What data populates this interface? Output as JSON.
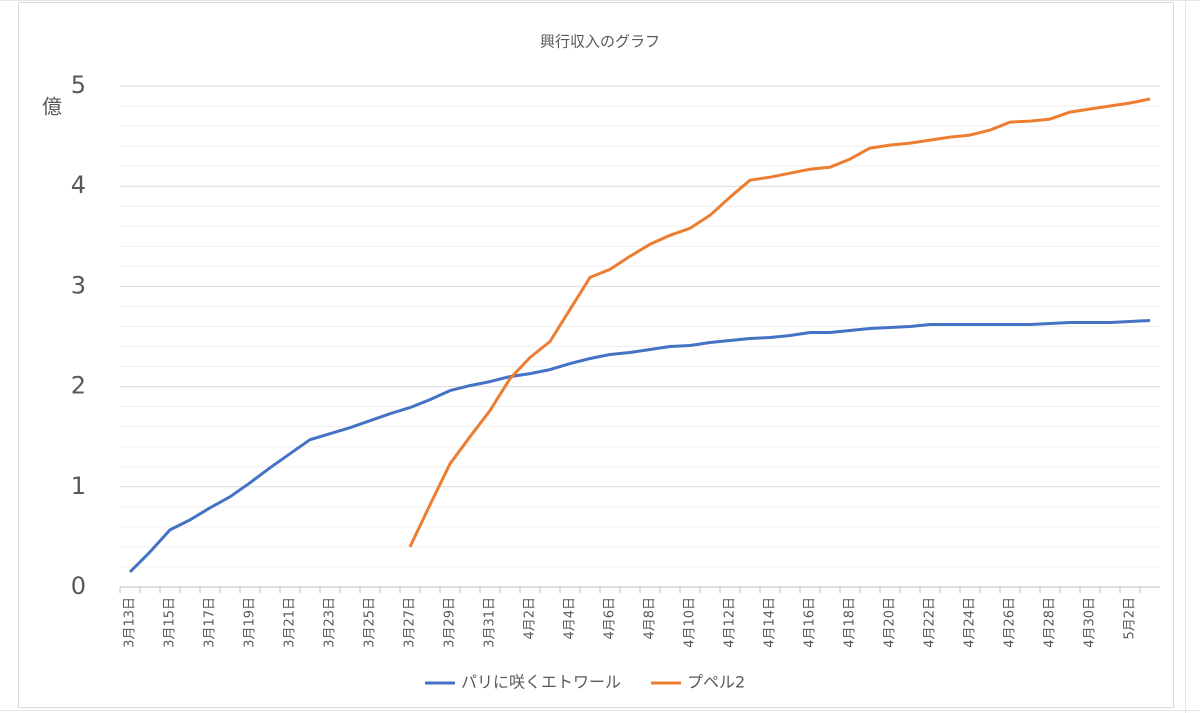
{
  "chart_data": {
    "type": "line",
    "title": "興行収入のグラフ",
    "y_label": "億",
    "categories": [
      "3月13日",
      null,
      "3月15日",
      null,
      "3月17日",
      null,
      "3月19日",
      null,
      "3月21日",
      null,
      "3月23日",
      null,
      "3月25日",
      null,
      "3月27日",
      null,
      "3月29日",
      null,
      "3月31日",
      null,
      "4月2日",
      null,
      "4月4日",
      null,
      "4月6日",
      null,
      "4月8日",
      null,
      "4月10日",
      null,
      "4月12日",
      null,
      "4月14日",
      null,
      "4月16日",
      null,
      "4月18日",
      null,
      "4月20日",
      null,
      "4月22日",
      null,
      "4月24日",
      null,
      "4月26日",
      null,
      "4月28日",
      null,
      "4月30日",
      null,
      "5月2日",
      null
    ],
    "series": [
      {
        "name": "パリに咲くエトワール",
        "color": "#4472c4",
        "values": [
          0.15,
          0.35,
          0.57,
          0.67,
          0.79,
          0.9,
          1.04,
          1.19,
          1.33,
          1.47,
          1.53,
          1.59,
          1.66,
          1.73,
          1.79,
          1.87,
          1.96,
          2.01,
          2.05,
          2.1,
          2.13,
          2.17,
          2.23,
          2.28,
          2.32,
          2.34,
          2.37,
          2.4,
          2.41,
          2.44,
          2.46,
          2.48,
          2.49,
          2.51,
          2.54,
          2.54,
          2.56,
          2.58,
          2.59,
          2.6,
          2.62,
          2.62,
          2.62,
          2.62,
          2.62,
          2.62,
          2.63,
          2.64,
          2.64,
          2.64,
          2.65,
          2.66
        ]
      },
      {
        "name": "プペル2",
        "color": "#ed7d31",
        "values": [
          null,
          null,
          null,
          null,
          null,
          null,
          null,
          null,
          null,
          null,
          null,
          null,
          null,
          null,
          0.4,
          0.82,
          1.23,
          1.5,
          1.76,
          2.08,
          2.29,
          2.45,
          2.77,
          3.09,
          3.17,
          3.3,
          3.42,
          3.51,
          3.58,
          3.71,
          3.89,
          4.06,
          4.09,
          4.13,
          4.17,
          4.19,
          4.27,
          4.38,
          4.41,
          4.43,
          4.46,
          4.49,
          4.51,
          4.56,
          4.64,
          4.65,
          4.67,
          4.74,
          4.77,
          4.8,
          4.83,
          4.87
        ]
      }
    ],
    "ylim": [
      0,
      5
    ],
    "yticks": [
      0,
      1,
      2,
      3,
      4,
      5
    ],
    "minor_yticks": [
      0.2,
      0.4,
      0.6,
      0.8,
      1.2,
      1.4,
      1.6,
      1.8,
      2.2,
      2.4,
      2.6,
      2.8,
      3.2,
      3.4,
      3.6,
      3.8,
      4.2,
      4.4,
      4.6,
      4.8
    ],
    "grid": true,
    "legend": "bottom"
  }
}
